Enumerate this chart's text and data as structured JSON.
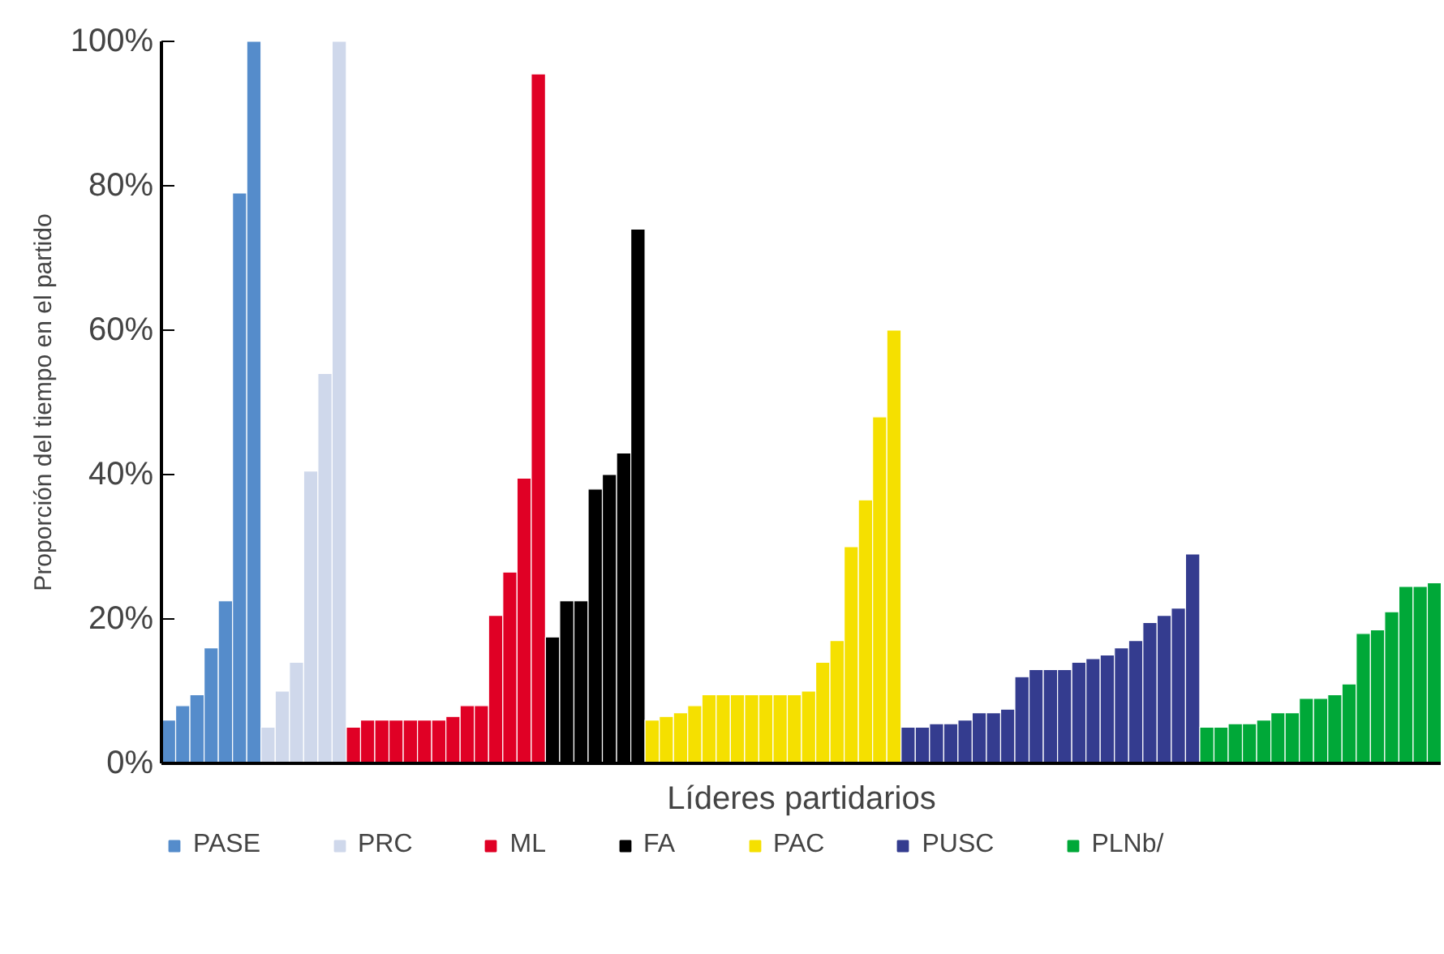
{
  "chart_data": {
    "type": "bar",
    "xlabel": "Líderes partidarios",
    "ylabel": "Proporción del tiempo en el partido",
    "categories": [
      null,
      null,
      null,
      null,
      null,
      null,
      null,
      null,
      null,
      null,
      null,
      null,
      null,
      null,
      null,
      null,
      null,
      null,
      null,
      null,
      null,
      null,
      null,
      null,
      null,
      null,
      null,
      null,
      null,
      null,
      null,
      null,
      null,
      null,
      null,
      null,
      null,
      null,
      null,
      null,
      null,
      null,
      null,
      null,
      null,
      null,
      null,
      null,
      null,
      null,
      null,
      null,
      null,
      null,
      null,
      null,
      null,
      null,
      null,
      null,
      null,
      null,
      null,
      null,
      null,
      null,
      null,
      null,
      null,
      null,
      null,
      null,
      null,
      null,
      null,
      null,
      null,
      null,
      null,
      null,
      null,
      null,
      null,
      null,
      null,
      null,
      null,
      null,
      null,
      null
    ],
    "series": [
      {
        "name": "PASE",
        "color": "#558ccb",
        "values": [
          6,
          8,
          9.5,
          16,
          22.5,
          79,
          100,
          null,
          null,
          null,
          null,
          null,
          null,
          null,
          null,
          null,
          null,
          null,
          null,
          null,
          null,
          null,
          null,
          null,
          null,
          null,
          null,
          null,
          null,
          null,
          null,
          null,
          null,
          null,
          null,
          null,
          null,
          null,
          null,
          null,
          null,
          null,
          null,
          null,
          null,
          null,
          null,
          null,
          null,
          null,
          null,
          null,
          null,
          null,
          null,
          null,
          null,
          null,
          null,
          null,
          null,
          null,
          null,
          null,
          null,
          null,
          null,
          null,
          null,
          null,
          null,
          null,
          null,
          null,
          null,
          null,
          null,
          null,
          null,
          null,
          null,
          null,
          null,
          null,
          null,
          null,
          null,
          null,
          null,
          null
        ]
      },
      {
        "name": "PRC",
        "color": "#cfd8eb",
        "values": [
          null,
          null,
          null,
          null,
          null,
          null,
          null,
          5,
          10,
          14,
          40.5,
          54,
          100,
          null,
          null,
          null,
          null,
          null,
          null,
          null,
          null,
          null,
          null,
          null,
          null,
          null,
          null,
          null,
          null,
          null,
          null,
          null,
          null,
          null,
          null,
          null,
          null,
          null,
          null,
          null,
          null,
          null,
          null,
          null,
          null,
          null,
          null,
          null,
          null,
          null,
          null,
          null,
          null,
          null,
          null,
          null,
          null,
          null,
          null,
          null,
          null,
          null,
          null,
          null,
          null,
          null,
          null,
          null,
          null,
          null,
          null,
          null,
          null,
          null,
          null,
          null,
          null,
          null,
          null,
          null,
          null,
          null,
          null,
          null,
          null,
          null,
          null,
          null,
          null,
          null
        ]
      },
      {
        "name": "ML",
        "color": "#e00025",
        "values": [
          null,
          null,
          null,
          null,
          null,
          null,
          null,
          null,
          null,
          null,
          null,
          null,
          null,
          5,
          6,
          6,
          6,
          6,
          6,
          6,
          6.5,
          8,
          8,
          20.5,
          26.5,
          39.5,
          95.5,
          null,
          null,
          null,
          null,
          null,
          null,
          null,
          null,
          null,
          null,
          null,
          null,
          null,
          null,
          null,
          null,
          null,
          null,
          null,
          null,
          null,
          null,
          null,
          null,
          null,
          null,
          null,
          null,
          null,
          null,
          null,
          null,
          null,
          null,
          null,
          null,
          null,
          null,
          null,
          null,
          null,
          null,
          null,
          null,
          null,
          null,
          null,
          null,
          null,
          null,
          null,
          null,
          null,
          null,
          null,
          null,
          null,
          null,
          null,
          null,
          null,
          null,
          null
        ]
      },
      {
        "name": "FA",
        "color": "#000000",
        "values": [
          null,
          null,
          null,
          null,
          null,
          null,
          null,
          null,
          null,
          null,
          null,
          null,
          null,
          null,
          null,
          null,
          null,
          null,
          null,
          null,
          null,
          null,
          null,
          null,
          null,
          null,
          null,
          17.5,
          22.5,
          22.5,
          38,
          40,
          43,
          74,
          null,
          null,
          null,
          null,
          null,
          null,
          null,
          null,
          null,
          null,
          null,
          null,
          null,
          null,
          null,
          null,
          null,
          null,
          null,
          null,
          null,
          null,
          null,
          null,
          null,
          null,
          null,
          null,
          null,
          null,
          null,
          null,
          null,
          null,
          null,
          null,
          null,
          null,
          null,
          null,
          null,
          null,
          null,
          null,
          null,
          null,
          null,
          null,
          null,
          null,
          null,
          null,
          null,
          null,
          null,
          null
        ]
      },
      {
        "name": "PAC",
        "color": "#f5e000",
        "values": [
          null,
          null,
          null,
          null,
          null,
          null,
          null,
          null,
          null,
          null,
          null,
          null,
          null,
          null,
          null,
          null,
          null,
          null,
          null,
          null,
          null,
          null,
          null,
          null,
          null,
          null,
          null,
          null,
          null,
          null,
          null,
          null,
          null,
          null,
          6,
          6.5,
          7,
          8,
          9.5,
          9.5,
          9.5,
          9.5,
          9.5,
          9.5,
          9.5,
          10,
          14,
          17,
          30,
          36.5,
          48,
          60,
          null,
          null,
          null,
          null,
          null,
          null,
          null,
          null,
          null,
          null,
          null,
          null,
          null,
          null,
          null,
          null,
          null,
          null,
          null,
          null,
          null,
          null,
          null,
          null,
          null,
          null,
          null,
          null,
          null,
          null,
          null,
          null,
          null,
          null,
          null,
          null,
          null,
          null
        ]
      },
      {
        "name": "PUSC",
        "color": "#343c8f",
        "values": [
          null,
          null,
          null,
          null,
          null,
          null,
          null,
          null,
          null,
          null,
          null,
          null,
          null,
          null,
          null,
          null,
          null,
          null,
          null,
          null,
          null,
          null,
          null,
          null,
          null,
          null,
          null,
          null,
          null,
          null,
          null,
          null,
          null,
          null,
          null,
          null,
          null,
          null,
          null,
          null,
          null,
          null,
          null,
          null,
          null,
          null,
          null,
          null,
          null,
          null,
          null,
          null,
          5,
          5,
          5.5,
          5.5,
          6,
          7,
          7,
          7.5,
          12,
          13,
          13,
          13,
          14,
          14.5,
          15,
          16,
          17,
          19.5,
          20.5,
          21.5,
          29,
          null,
          null,
          null,
          null,
          null,
          null,
          null,
          null,
          null,
          null,
          null,
          null,
          null,
          null,
          null,
          null,
          null
        ]
      },
      {
        "name": "PLNb/",
        "color": "#00a838",
        "values": [
          null,
          null,
          null,
          null,
          null,
          null,
          null,
          null,
          null,
          null,
          null,
          null,
          null,
          null,
          null,
          null,
          null,
          null,
          null,
          null,
          null,
          null,
          null,
          null,
          null,
          null,
          null,
          null,
          null,
          null,
          null,
          null,
          null,
          null,
          null,
          null,
          null,
          null,
          null,
          null,
          null,
          null,
          null,
          null,
          null,
          null,
          null,
          null,
          null,
          null,
          null,
          null,
          null,
          null,
          null,
          null,
          null,
          null,
          null,
          null,
          null,
          null,
          null,
          null,
          null,
          null,
          null,
          null,
          null,
          null,
          null,
          null,
          null,
          5,
          5,
          5.5,
          5.5,
          6,
          7,
          7,
          9,
          9,
          9.5,
          11,
          18,
          18.5,
          21,
          24.5,
          24.5,
          25
        ]
      }
    ],
    "ylim": [
      0,
      100
    ],
    "yticks": [
      {
        "value": 0,
        "label": "0%"
      },
      {
        "value": 20,
        "label": "20%"
      },
      {
        "value": 40,
        "label": "40%"
      },
      {
        "value": 60,
        "label": "60%"
      },
      {
        "value": 80,
        "label": "80%"
      },
      {
        "value": 100,
        "label": "100%"
      }
    ],
    "tick_labels": "y",
    "grid": false,
    "legend": "bottom"
  }
}
